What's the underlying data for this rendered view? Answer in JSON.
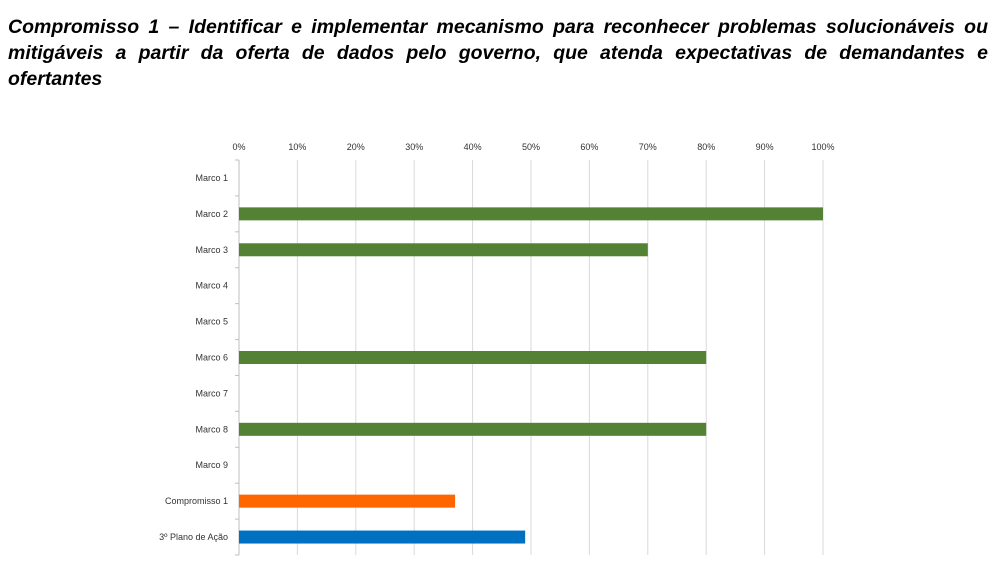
{
  "title": "Compromisso 1 – Identificar e implementar mecanismo para reconhecer problemas solucionáveis ou mitigáveis a partir da oferta de dados pelo governo, que atenda expectativas de demandantes e ofertantes",
  "chart_data": {
    "type": "bar",
    "orientation": "horizontal",
    "title": "Compromisso 1 – Identificar e implementar mecanismo para reconhecer problemas solucionáveis ou mitigáveis a partir da oferta de dados pelo governo, que atenda expectativas de demandantes e ofertantes",
    "categories": [
      "Marco 1",
      "Marco 2",
      "Marco 3",
      "Marco 4",
      "Marco 5",
      "Marco 6",
      "Marco 7",
      "Marco 8",
      "Marco 9",
      "Compromisso 1",
      "3º Plano de Ação"
    ],
    "values": [
      0,
      100,
      70,
      0,
      0,
      80,
      0,
      80,
      0,
      37,
      49
    ],
    "colors": [
      "#548235",
      "#548235",
      "#548235",
      "#548235",
      "#548235",
      "#548235",
      "#548235",
      "#548235",
      "#548235",
      "#ff6600",
      "#0070c0"
    ],
    "xlim": [
      0,
      100
    ],
    "xticks": [
      "0%",
      "10%",
      "20%",
      "30%",
      "40%",
      "50%",
      "60%",
      "70%",
      "80%",
      "90%",
      "100%"
    ],
    "xaxis_position": "top",
    "grid": true,
    "legend": "none"
  }
}
